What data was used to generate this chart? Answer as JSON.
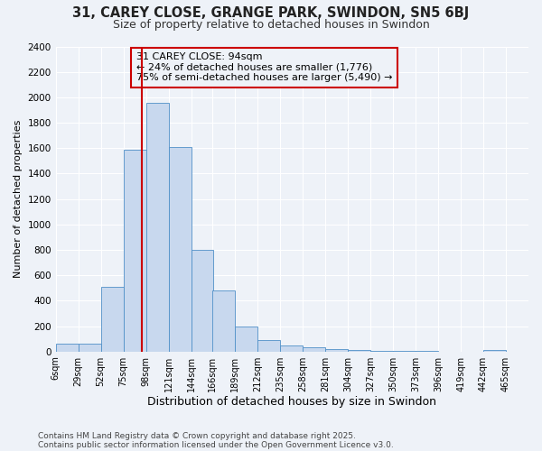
{
  "title": "31, CAREY CLOSE, GRANGE PARK, SWINDON, SN5 6BJ",
  "subtitle": "Size of property relative to detached houses in Swindon",
  "xlabel": "Distribution of detached houses by size in Swindon",
  "ylabel": "Number of detached properties",
  "bin_labels": [
    "6sqm",
    "29sqm",
    "52sqm",
    "75sqm",
    "98sqm",
    "121sqm",
    "144sqm",
    "166sqm",
    "189sqm",
    "212sqm",
    "235sqm",
    "258sqm",
    "281sqm",
    "304sqm",
    "327sqm",
    "350sqm",
    "373sqm",
    "396sqm",
    "419sqm",
    "442sqm",
    "465sqm"
  ],
  "bin_edges": [
    6,
    29,
    52,
    75,
    98,
    121,
    144,
    166,
    189,
    212,
    235,
    258,
    281,
    304,
    327,
    350,
    373,
    396,
    419,
    442,
    465
  ],
  "bar_heights": [
    60,
    60,
    510,
    1590,
    1960,
    1610,
    800,
    480,
    195,
    90,
    50,
    30,
    20,
    10,
    5,
    3,
    2,
    1,
    0,
    15,
    0
  ],
  "bar_color": "#c8d8ee",
  "bar_edge_color": "#5090c8",
  "property_sqm": 94,
  "vline_color": "#cc0000",
  "annotation_line1": "31 CAREY CLOSE: 94sqm",
  "annotation_line2": "← 24% of detached houses are smaller (1,776)",
  "annotation_line3": "75% of semi-detached houses are larger (5,490) →",
  "ylim": [
    0,
    2400
  ],
  "yticks": [
    0,
    200,
    400,
    600,
    800,
    1000,
    1200,
    1400,
    1600,
    1800,
    2000,
    2200,
    2400
  ],
  "footnote1": "Contains HM Land Registry data © Crown copyright and database right 2025.",
  "footnote2": "Contains public sector information licensed under the Open Government Licence v3.0.",
  "bg_color": "#eef2f8",
  "grid_color": "#ffffff",
  "title_fontsize": 10.5,
  "subtitle_fontsize": 9
}
